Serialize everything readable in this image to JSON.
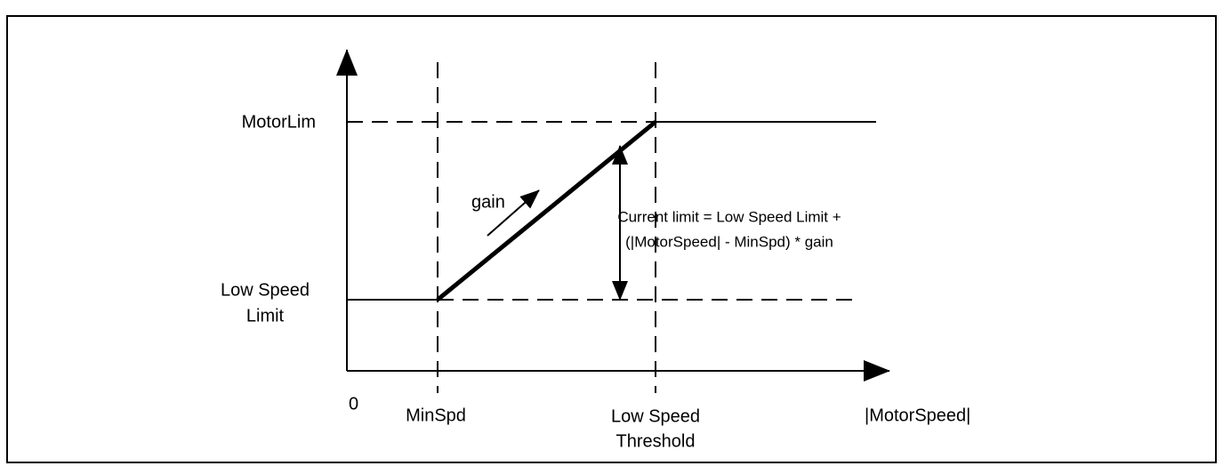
{
  "diagram": {
    "y_labels": {
      "upper": "MotorLim",
      "lower": [
        "Low Speed",
        "Limit"
      ]
    },
    "x_labels": {
      "origin": "0",
      "min": "MinSpd",
      "threshold": [
        "Low Speed",
        "Threshold"
      ],
      "axis": "|MotorSpeed|"
    },
    "gain_label": "gain",
    "formula": [
      "Current limit = Low Speed Limit +",
      "(|MotorSpeed| - MinSpd) * gain"
    ]
  }
}
